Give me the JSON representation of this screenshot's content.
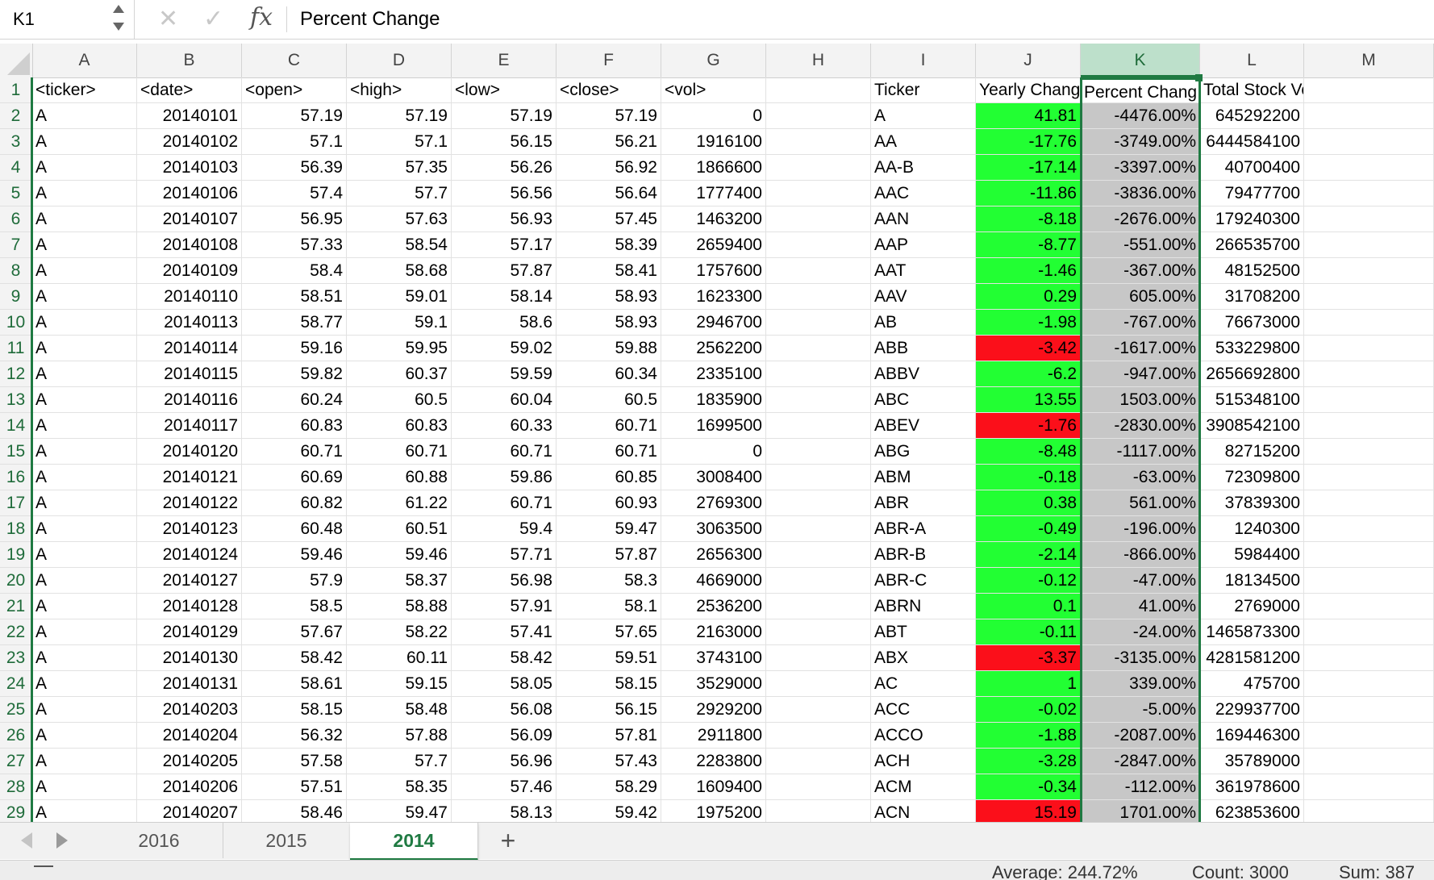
{
  "formula_bar": {
    "cell_ref": "K1",
    "cancel_glyph": "✕",
    "enter_glyph": "✓",
    "fx_label": "fx",
    "formula": "Percent Change"
  },
  "columns": [
    "A",
    "B",
    "C",
    "D",
    "E",
    "F",
    "G",
    "H",
    "I",
    "J",
    "K",
    "L",
    "M"
  ],
  "selected_column": "K",
  "header_row": [
    "<ticker>",
    "<date>",
    "<open>",
    "<high>",
    "<low>",
    "<close>",
    "<vol>",
    "",
    "Ticker",
    "Yearly Chang",
    "Percent Chang",
    "Total Stock Volume",
    ""
  ],
  "rows": [
    {
      "n": "2",
      "a": "A",
      "b": "20140101",
      "c": "57.19",
      "d": "57.19",
      "e": "57.19",
      "f": "57.19",
      "g": "0",
      "i": "A",
      "j": "41.81",
      "jc": "green",
      "k": "-4476.00%",
      "l": "645292200"
    },
    {
      "n": "3",
      "a": "A",
      "b": "20140102",
      "c": "57.1",
      "d": "57.1",
      "e": "56.15",
      "f": "56.21",
      "g": "1916100",
      "i": "AA",
      "j": "-17.76",
      "jc": "green",
      "k": "-3749.00%",
      "l": "6444584100"
    },
    {
      "n": "4",
      "a": "A",
      "b": "20140103",
      "c": "56.39",
      "d": "57.35",
      "e": "56.26",
      "f": "56.92",
      "g": "1866600",
      "i": "AA-B",
      "j": "-17.14",
      "jc": "green",
      "k": "-3397.00%",
      "l": "40700400"
    },
    {
      "n": "5",
      "a": "A",
      "b": "20140106",
      "c": "57.4",
      "d": "57.7",
      "e": "56.56",
      "f": "56.64",
      "g": "1777400",
      "i": "AAC",
      "j": "-11.86",
      "jc": "green",
      "k": "-3836.00%",
      "l": "79477700"
    },
    {
      "n": "6",
      "a": "A",
      "b": "20140107",
      "c": "56.95",
      "d": "57.63",
      "e": "56.93",
      "f": "57.45",
      "g": "1463200",
      "i": "AAN",
      "j": "-8.18",
      "jc": "green",
      "k": "-2676.00%",
      "l": "179240300"
    },
    {
      "n": "7",
      "a": "A",
      "b": "20140108",
      "c": "57.33",
      "d": "58.54",
      "e": "57.17",
      "f": "58.39",
      "g": "2659400",
      "i": "AAP",
      "j": "-8.77",
      "jc": "green",
      "k": "-551.00%",
      "l": "266535700"
    },
    {
      "n": "8",
      "a": "A",
      "b": "20140109",
      "c": "58.4",
      "d": "58.68",
      "e": "57.87",
      "f": "58.41",
      "g": "1757600",
      "i": "AAT",
      "j": "-1.46",
      "jc": "green",
      "k": "-367.00%",
      "l": "48152500"
    },
    {
      "n": "9",
      "a": "A",
      "b": "20140110",
      "c": "58.51",
      "d": "59.01",
      "e": "58.14",
      "f": "58.93",
      "g": "1623300",
      "i": "AAV",
      "j": "0.29",
      "jc": "green",
      "k": "605.00%",
      "l": "31708200"
    },
    {
      "n": "10",
      "a": "A",
      "b": "20140113",
      "c": "58.77",
      "d": "59.1",
      "e": "58.6",
      "f": "58.93",
      "g": "2946700",
      "i": "AB",
      "j": "-1.98",
      "jc": "green",
      "k": "-767.00%",
      "l": "76673000"
    },
    {
      "n": "11",
      "a": "A",
      "b": "20140114",
      "c": "59.16",
      "d": "59.95",
      "e": "59.02",
      "f": "59.88",
      "g": "2562200",
      "i": "ABB",
      "j": "-3.42",
      "jc": "red",
      "k": "-1617.00%",
      "l": "533229800"
    },
    {
      "n": "12",
      "a": "A",
      "b": "20140115",
      "c": "59.82",
      "d": "60.37",
      "e": "59.59",
      "f": "60.34",
      "g": "2335100",
      "i": "ABBV",
      "j": "-6.2",
      "jc": "green",
      "k": "-947.00%",
      "l": "2656692800"
    },
    {
      "n": "13",
      "a": "A",
      "b": "20140116",
      "c": "60.24",
      "d": "60.5",
      "e": "60.04",
      "f": "60.5",
      "g": "1835900",
      "i": "ABC",
      "j": "13.55",
      "jc": "green",
      "k": "1503.00%",
      "l": "515348100"
    },
    {
      "n": "14",
      "a": "A",
      "b": "20140117",
      "c": "60.83",
      "d": "60.83",
      "e": "60.33",
      "f": "60.71",
      "g": "1699500",
      "i": "ABEV",
      "j": "-1.76",
      "jc": "red",
      "k": "-2830.00%",
      "l": "3908542100"
    },
    {
      "n": "15",
      "a": "A",
      "b": "20140120",
      "c": "60.71",
      "d": "60.71",
      "e": "60.71",
      "f": "60.71",
      "g": "0",
      "i": "ABG",
      "j": "-8.48",
      "jc": "green",
      "k": "-1117.00%",
      "l": "82715200"
    },
    {
      "n": "16",
      "a": "A",
      "b": "20140121",
      "c": "60.69",
      "d": "60.88",
      "e": "59.86",
      "f": "60.85",
      "g": "3008400",
      "i": "ABM",
      "j": "-0.18",
      "jc": "green",
      "k": "-63.00%",
      "l": "72309800"
    },
    {
      "n": "17",
      "a": "A",
      "b": "20140122",
      "c": "60.82",
      "d": "61.22",
      "e": "60.71",
      "f": "60.93",
      "g": "2769300",
      "i": "ABR",
      "j": "0.38",
      "jc": "green",
      "k": "561.00%",
      "l": "37839300"
    },
    {
      "n": "18",
      "a": "A",
      "b": "20140123",
      "c": "60.48",
      "d": "60.51",
      "e": "59.4",
      "f": "59.47",
      "g": "3063500",
      "i": "ABR-A",
      "j": "-0.49",
      "jc": "green",
      "k": "-196.00%",
      "l": "1240300"
    },
    {
      "n": "19",
      "a": "A",
      "b": "20140124",
      "c": "59.46",
      "d": "59.46",
      "e": "57.71",
      "f": "57.87",
      "g": "2656300",
      "i": "ABR-B",
      "j": "-2.14",
      "jc": "green",
      "k": "-866.00%",
      "l": "5984400"
    },
    {
      "n": "20",
      "a": "A",
      "b": "20140127",
      "c": "57.9",
      "d": "58.37",
      "e": "56.98",
      "f": "58.3",
      "g": "4669000",
      "i": "ABR-C",
      "j": "-0.12",
      "jc": "green",
      "k": "-47.00%",
      "l": "18134500"
    },
    {
      "n": "21",
      "a": "A",
      "b": "20140128",
      "c": "58.5",
      "d": "58.88",
      "e": "57.91",
      "f": "58.1",
      "g": "2536200",
      "i": "ABRN",
      "j": "0.1",
      "jc": "green",
      "k": "41.00%",
      "l": "2769000"
    },
    {
      "n": "22",
      "a": "A",
      "b": "20140129",
      "c": "57.67",
      "d": "58.22",
      "e": "57.41",
      "f": "57.65",
      "g": "2163000",
      "i": "ABT",
      "j": "-0.11",
      "jc": "green",
      "k": "-24.00%",
      "l": "1465873300"
    },
    {
      "n": "23",
      "a": "A",
      "b": "20140130",
      "c": "58.42",
      "d": "60.11",
      "e": "58.42",
      "f": "59.51",
      "g": "3743100",
      "i": "ABX",
      "j": "-3.37",
      "jc": "red",
      "k": "-3135.00%",
      "l": "4281581200"
    },
    {
      "n": "24",
      "a": "A",
      "b": "20140131",
      "c": "58.61",
      "d": "59.15",
      "e": "58.05",
      "f": "58.15",
      "g": "3529000",
      "i": "AC",
      "j": "1",
      "jc": "green",
      "k": "339.00%",
      "l": "475700"
    },
    {
      "n": "25",
      "a": "A",
      "b": "20140203",
      "c": "58.15",
      "d": "58.48",
      "e": "56.08",
      "f": "56.15",
      "g": "2929200",
      "i": "ACC",
      "j": "-0.02",
      "jc": "green",
      "k": "-5.00%",
      "l": "229937700"
    },
    {
      "n": "26",
      "a": "A",
      "b": "20140204",
      "c": "56.32",
      "d": "57.88",
      "e": "56.09",
      "f": "57.81",
      "g": "2911800",
      "i": "ACCO",
      "j": "-1.88",
      "jc": "green",
      "k": "-2087.00%",
      "l": "169446300"
    },
    {
      "n": "27",
      "a": "A",
      "b": "20140205",
      "c": "57.58",
      "d": "57.7",
      "e": "56.96",
      "f": "57.43",
      "g": "2283800",
      "i": "ACH",
      "j": "-3.28",
      "jc": "green",
      "k": "-2847.00%",
      "l": "35789000"
    },
    {
      "n": "28",
      "a": "A",
      "b": "20140206",
      "c": "57.51",
      "d": "58.35",
      "e": "57.46",
      "f": "58.29",
      "g": "1609400",
      "i": "ACM",
      "j": "-0.34",
      "jc": "green",
      "k": "-112.00%",
      "l": "361978600"
    },
    {
      "n": "29",
      "a": "A",
      "b": "20140207",
      "c": "58.46",
      "d": "59.47",
      "e": "58.13",
      "f": "59.42",
      "g": "1975200",
      "i": "ACN",
      "j": "15.19",
      "jc": "red",
      "k": "1701.00%",
      "l": "623853600"
    }
  ],
  "sheet_tabs": [
    {
      "label": "2016",
      "active": false
    },
    {
      "label": "2015",
      "active": false
    },
    {
      "label": "2014",
      "active": true
    }
  ],
  "add_sheet_label": "+",
  "status": {
    "average": "Average: 244.72%",
    "count": "Count: 3000",
    "sum": "Sum: 387"
  },
  "colors": {
    "j_positive_fill": "#22ff33",
    "j_negative_fill": "#fb0f1a",
    "k_fill": "#c7c7c7",
    "accent": "#1f7a42"
  }
}
